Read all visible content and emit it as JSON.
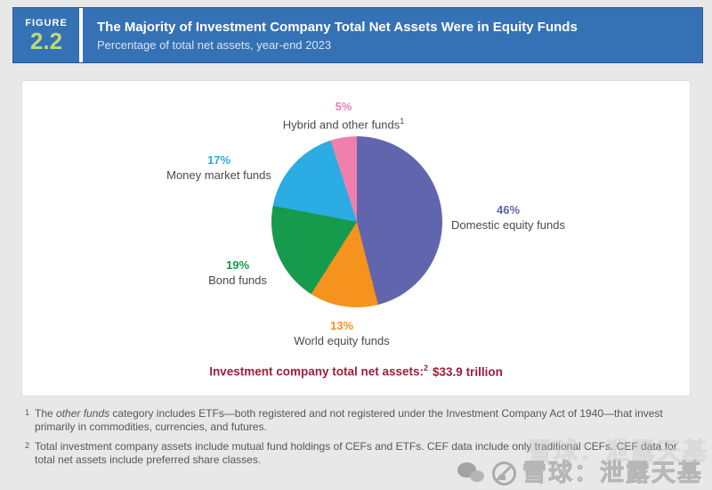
{
  "figure": {
    "label": "FIGURE",
    "number": "2.2"
  },
  "header": {
    "title": "The Majority of Investment Company Total Net Assets Were in Equity Funds",
    "subtitle": "Percentage of total net assets, year-end 2023"
  },
  "chart_data": {
    "type": "pie",
    "title": "The Majority of Investment Company Total Net Assets Were in Equity Funds",
    "subtitle": "Percentage of total net assets, year-end 2023",
    "units": "percent of total net assets",
    "start_angle_deg": 0,
    "direction": "clockwise",
    "legend_position": "labels-outside",
    "slices": [
      {
        "name": "Domestic equity funds",
        "value": 46,
        "pct_label": "46%",
        "color": "#6065ae"
      },
      {
        "name": "World equity funds",
        "value": 13,
        "pct_label": "13%",
        "color": "#f6921e"
      },
      {
        "name": "Bond funds",
        "value": 19,
        "pct_label": "19%",
        "color": "#169a4b"
      },
      {
        "name": "Money market funds",
        "value": 17,
        "pct_label": "17%",
        "color": "#2bace2"
      },
      {
        "name": "Hybrid and other funds",
        "value": 5,
        "pct_label": "5%",
        "color": "#ef7fad",
        "sup": "1"
      }
    ],
    "total_note": {
      "text": "Investment company total net assets:",
      "sup": "2",
      "value": "$33.9 trillion"
    }
  },
  "footnotes": [
    {
      "marker": "1",
      "pre": "The ",
      "italic": "other funds",
      "post": " category includes ETFs—both registered and not registered under the Investment Company Act of 1940—that invest primarily in commodities, currencies, and futures."
    },
    {
      "marker": "2",
      "pre": "",
      "italic": "",
      "post": "Total investment company assets include mutual fund holdings of CEFs and ETFs. CEF data include only traditional CEFs. CEF data for total net assets include preferred share classes."
    }
  ],
  "watermark": {
    "icons": [
      "wechat-icon",
      "xueqiu-icon"
    ],
    "text": "雪球：泄露天基"
  },
  "colors": {
    "header_blue": "#3571b5",
    "figure_number_green": "#bcd976",
    "page_background": "#e8e8e9",
    "panel_background": "#ffffff",
    "label_text": "#4b4b4d",
    "footnote_text": "#55565a",
    "total_note_maroon": "#a01e3c"
  }
}
